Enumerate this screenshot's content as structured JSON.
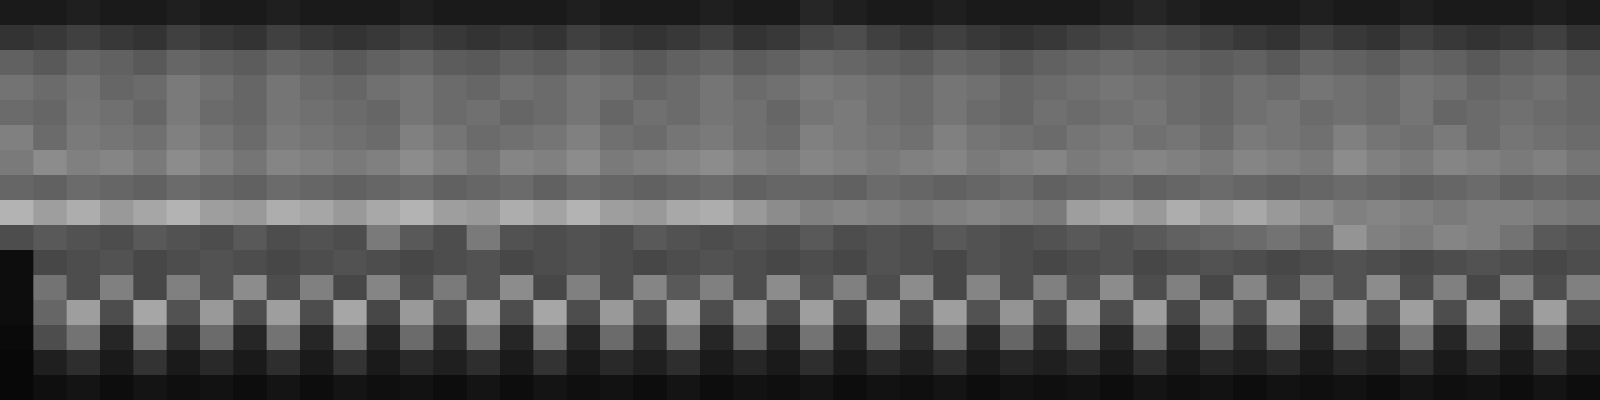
{
  "chart_data": {
    "type": "heatmap",
    "xlim": [
      0,
      48
    ],
    "ylim": [
      0,
      16
    ],
    "tick_labels": false,
    "color_range": [
      0,
      1
    ],
    "cells": [
      [
        0.1,
        0.1,
        0.12,
        0.1,
        0.1,
        0.12,
        0.1,
        0.1,
        0.12,
        0.1,
        0.1,
        0.1,
        0.12,
        0.1,
        0.1,
        0.1,
        0.1,
        0.12,
        0.1,
        0.1,
        0.1,
        0.12,
        0.1,
        0.1,
        0.15,
        0.12,
        0.1,
        0.1,
        0.12,
        0.1,
        0.1,
        0.1,
        0.1,
        0.12,
        0.15,
        0.12,
        0.1,
        0.1,
        0.1,
        0.12,
        0.1,
        0.1,
        0.12,
        0.1,
        0.1,
        0.1,
        0.12,
        0.1
      ],
      [
        0.2,
        0.22,
        0.25,
        0.22,
        0.2,
        0.25,
        0.22,
        0.2,
        0.25,
        0.22,
        0.2,
        0.22,
        0.25,
        0.22,
        0.2,
        0.22,
        0.2,
        0.25,
        0.22,
        0.2,
        0.22,
        0.25,
        0.2,
        0.22,
        0.28,
        0.3,
        0.25,
        0.22,
        0.25,
        0.22,
        0.2,
        0.22,
        0.25,
        0.28,
        0.3,
        0.28,
        0.25,
        0.22,
        0.2,
        0.25,
        0.22,
        0.2,
        0.25,
        0.22,
        0.2,
        0.22,
        0.25,
        0.2
      ],
      [
        0.38,
        0.35,
        0.4,
        0.38,
        0.35,
        0.4,
        0.38,
        0.36,
        0.4,
        0.38,
        0.35,
        0.38,
        0.4,
        0.36,
        0.35,
        0.38,
        0.36,
        0.4,
        0.38,
        0.35,
        0.38,
        0.4,
        0.36,
        0.38,
        0.42,
        0.4,
        0.38,
        0.36,
        0.4,
        0.38,
        0.35,
        0.38,
        0.4,
        0.42,
        0.4,
        0.38,
        0.36,
        0.38,
        0.35,
        0.4,
        0.38,
        0.36,
        0.4,
        0.38,
        0.35,
        0.38,
        0.4,
        0.36
      ],
      [
        0.45,
        0.42,
        0.45,
        0.4,
        0.42,
        0.48,
        0.44,
        0.4,
        0.46,
        0.42,
        0.4,
        0.44,
        0.46,
        0.42,
        0.4,
        0.44,
        0.42,
        0.46,
        0.44,
        0.4,
        0.42,
        0.46,
        0.42,
        0.44,
        0.48,
        0.46,
        0.44,
        0.42,
        0.46,
        0.44,
        0.4,
        0.42,
        0.44,
        0.46,
        0.44,
        0.42,
        0.4,
        0.44,
        0.42,
        0.46,
        0.44,
        0.42,
        0.46,
        0.44,
        0.4,
        0.42,
        0.44,
        0.4
      ],
      [
        0.42,
        0.4,
        0.46,
        0.44,
        0.4,
        0.48,
        0.42,
        0.4,
        0.46,
        0.44,
        0.42,
        0.4,
        0.46,
        0.42,
        0.44,
        0.4,
        0.42,
        0.46,
        0.4,
        0.44,
        0.42,
        0.46,
        0.44,
        0.4,
        0.46,
        0.48,
        0.44,
        0.42,
        0.46,
        0.42,
        0.4,
        0.44,
        0.42,
        0.44,
        0.46,
        0.42,
        0.4,
        0.44,
        0.46,
        0.42,
        0.44,
        0.42,
        0.46,
        0.4,
        0.42,
        0.44,
        0.42,
        0.4
      ],
      [
        0.5,
        0.42,
        0.48,
        0.46,
        0.44,
        0.5,
        0.46,
        0.42,
        0.48,
        0.46,
        0.44,
        0.42,
        0.5,
        0.46,
        0.42,
        0.44,
        0.46,
        0.5,
        0.44,
        0.42,
        0.46,
        0.48,
        0.44,
        0.42,
        0.5,
        0.48,
        0.46,
        0.44,
        0.5,
        0.46,
        0.44,
        0.42,
        0.46,
        0.48,
        0.44,
        0.46,
        0.42,
        0.48,
        0.46,
        0.44,
        0.5,
        0.46,
        0.44,
        0.48,
        0.42,
        0.46,
        0.44,
        0.42
      ],
      [
        0.48,
        0.55,
        0.5,
        0.52,
        0.48,
        0.55,
        0.5,
        0.46,
        0.52,
        0.5,
        0.48,
        0.5,
        0.55,
        0.5,
        0.46,
        0.52,
        0.5,
        0.55,
        0.48,
        0.5,
        0.52,
        0.55,
        0.5,
        0.48,
        0.52,
        0.5,
        0.48,
        0.5,
        0.52,
        0.48,
        0.5,
        0.52,
        0.48,
        0.5,
        0.52,
        0.5,
        0.48,
        0.52,
        0.5,
        0.48,
        0.55,
        0.5,
        0.48,
        0.52,
        0.5,
        0.48,
        0.5,
        0.46
      ],
      [
        0.4,
        0.38,
        0.42,
        0.4,
        0.38,
        0.42,
        0.4,
        0.38,
        0.42,
        0.4,
        0.38,
        0.4,
        0.42,
        0.38,
        0.4,
        0.42,
        0.38,
        0.42,
        0.4,
        0.38,
        0.4,
        0.42,
        0.38,
        0.4,
        0.4,
        0.38,
        0.42,
        0.4,
        0.38,
        0.4,
        0.42,
        0.38,
        0.4,
        0.42,
        0.38,
        0.4,
        0.42,
        0.4,
        0.38,
        0.4,
        0.42,
        0.4,
        0.38,
        0.4,
        0.42,
        0.38,
        0.4,
        0.38
      ],
      [
        0.7,
        0.62,
        0.68,
        0.6,
        0.65,
        0.7,
        0.62,
        0.6,
        0.68,
        0.65,
        0.6,
        0.66,
        0.7,
        0.62,
        0.6,
        0.68,
        0.64,
        0.7,
        0.62,
        0.6,
        0.66,
        0.68,
        0.6,
        0.55,
        0.5,
        0.52,
        0.5,
        0.48,
        0.5,
        0.52,
        0.5,
        0.48,
        0.62,
        0.65,
        0.6,
        0.68,
        0.62,
        0.66,
        0.6,
        0.55,
        0.5,
        0.52,
        0.5,
        0.48,
        0.5,
        0.5,
        0.48,
        0.46
      ],
      [
        0.3,
        0.35,
        0.32,
        0.3,
        0.35,
        0.32,
        0.3,
        0.35,
        0.3,
        0.32,
        0.3,
        0.48,
        0.35,
        0.3,
        0.48,
        0.32,
        0.3,
        0.32,
        0.3,
        0.35,
        0.32,
        0.3,
        0.32,
        0.3,
        0.35,
        0.3,
        0.32,
        0.3,
        0.35,
        0.32,
        0.3,
        0.32,
        0.35,
        0.32,
        0.35,
        0.38,
        0.4,
        0.42,
        0.45,
        0.4,
        0.58,
        0.5,
        0.48,
        0.52,
        0.5,
        0.45,
        0.35,
        0.32
      ],
      [
        0.05,
        0.28,
        0.3,
        0.32,
        0.28,
        0.3,
        0.32,
        0.3,
        0.28,
        0.3,
        0.32,
        0.3,
        0.28,
        0.3,
        0.32,
        0.28,
        0.3,
        0.32,
        0.3,
        0.28,
        0.3,
        0.32,
        0.3,
        0.28,
        0.3,
        0.28,
        0.32,
        0.3,
        0.28,
        0.32,
        0.3,
        0.28,
        0.3,
        0.32,
        0.28,
        0.3,
        0.32,
        0.3,
        0.28,
        0.3,
        0.32,
        0.3,
        0.28,
        0.3,
        0.32,
        0.3,
        0.28,
        0.3
      ],
      [
        0.05,
        0.45,
        0.3,
        0.5,
        0.28,
        0.5,
        0.32,
        0.55,
        0.3,
        0.5,
        0.28,
        0.52,
        0.3,
        0.48,
        0.32,
        0.55,
        0.28,
        0.5,
        0.3,
        0.52,
        0.35,
        0.5,
        0.3,
        0.55,
        0.32,
        0.5,
        0.3,
        0.55,
        0.28,
        0.52,
        0.3,
        0.5,
        0.32,
        0.55,
        0.3,
        0.5,
        0.28,
        0.52,
        0.3,
        0.48,
        0.32,
        0.55,
        0.3,
        0.5,
        0.28,
        0.52,
        0.3,
        0.5
      ],
      [
        0.05,
        0.4,
        0.62,
        0.3,
        0.65,
        0.32,
        0.6,
        0.3,
        0.62,
        0.3,
        0.65,
        0.28,
        0.6,
        0.32,
        0.62,
        0.3,
        0.65,
        0.3,
        0.6,
        0.32,
        0.62,
        0.3,
        0.58,
        0.3,
        0.62,
        0.28,
        0.6,
        0.3,
        0.62,
        0.32,
        0.58,
        0.3,
        0.6,
        0.3,
        0.62,
        0.28,
        0.55,
        0.3,
        0.6,
        0.3,
        0.58,
        0.32,
        0.62,
        0.3,
        0.6,
        0.28,
        0.62,
        0.3
      ],
      [
        0.04,
        0.3,
        0.45,
        0.15,
        0.48,
        0.18,
        0.42,
        0.15,
        0.45,
        0.15,
        0.48,
        0.15,
        0.42,
        0.18,
        0.45,
        0.15,
        0.48,
        0.15,
        0.42,
        0.18,
        0.45,
        0.15,
        0.4,
        0.15,
        0.45,
        0.15,
        0.42,
        0.18,
        0.45,
        0.15,
        0.4,
        0.18,
        0.42,
        0.15,
        0.45,
        0.15,
        0.4,
        0.18,
        0.42,
        0.15,
        0.4,
        0.18,
        0.45,
        0.15,
        0.42,
        0.15,
        0.45,
        0.15
      ],
      [
        0.03,
        0.12,
        0.18,
        0.1,
        0.2,
        0.1,
        0.16,
        0.1,
        0.18,
        0.1,
        0.2,
        0.1,
        0.16,
        0.12,
        0.18,
        0.1,
        0.2,
        0.1,
        0.16,
        0.12,
        0.18,
        0.1,
        0.15,
        0.1,
        0.18,
        0.1,
        0.16,
        0.12,
        0.18,
        0.1,
        0.15,
        0.12,
        0.16,
        0.1,
        0.18,
        0.1,
        0.15,
        0.12,
        0.16,
        0.1,
        0.15,
        0.12,
        0.18,
        0.1,
        0.16,
        0.1,
        0.18,
        0.1
      ],
      [
        0.03,
        0.06,
        0.08,
        0.05,
        0.08,
        0.06,
        0.07,
        0.05,
        0.08,
        0.05,
        0.08,
        0.06,
        0.07,
        0.05,
        0.08,
        0.05,
        0.08,
        0.06,
        0.07,
        0.05,
        0.08,
        0.05,
        0.07,
        0.06,
        0.08,
        0.05,
        0.07,
        0.06,
        0.08,
        0.05,
        0.07,
        0.06,
        0.07,
        0.05,
        0.08,
        0.06,
        0.07,
        0.05,
        0.07,
        0.06,
        0.07,
        0.05,
        0.08,
        0.06,
        0.07,
        0.05,
        0.08,
        0.05
      ]
    ]
  }
}
